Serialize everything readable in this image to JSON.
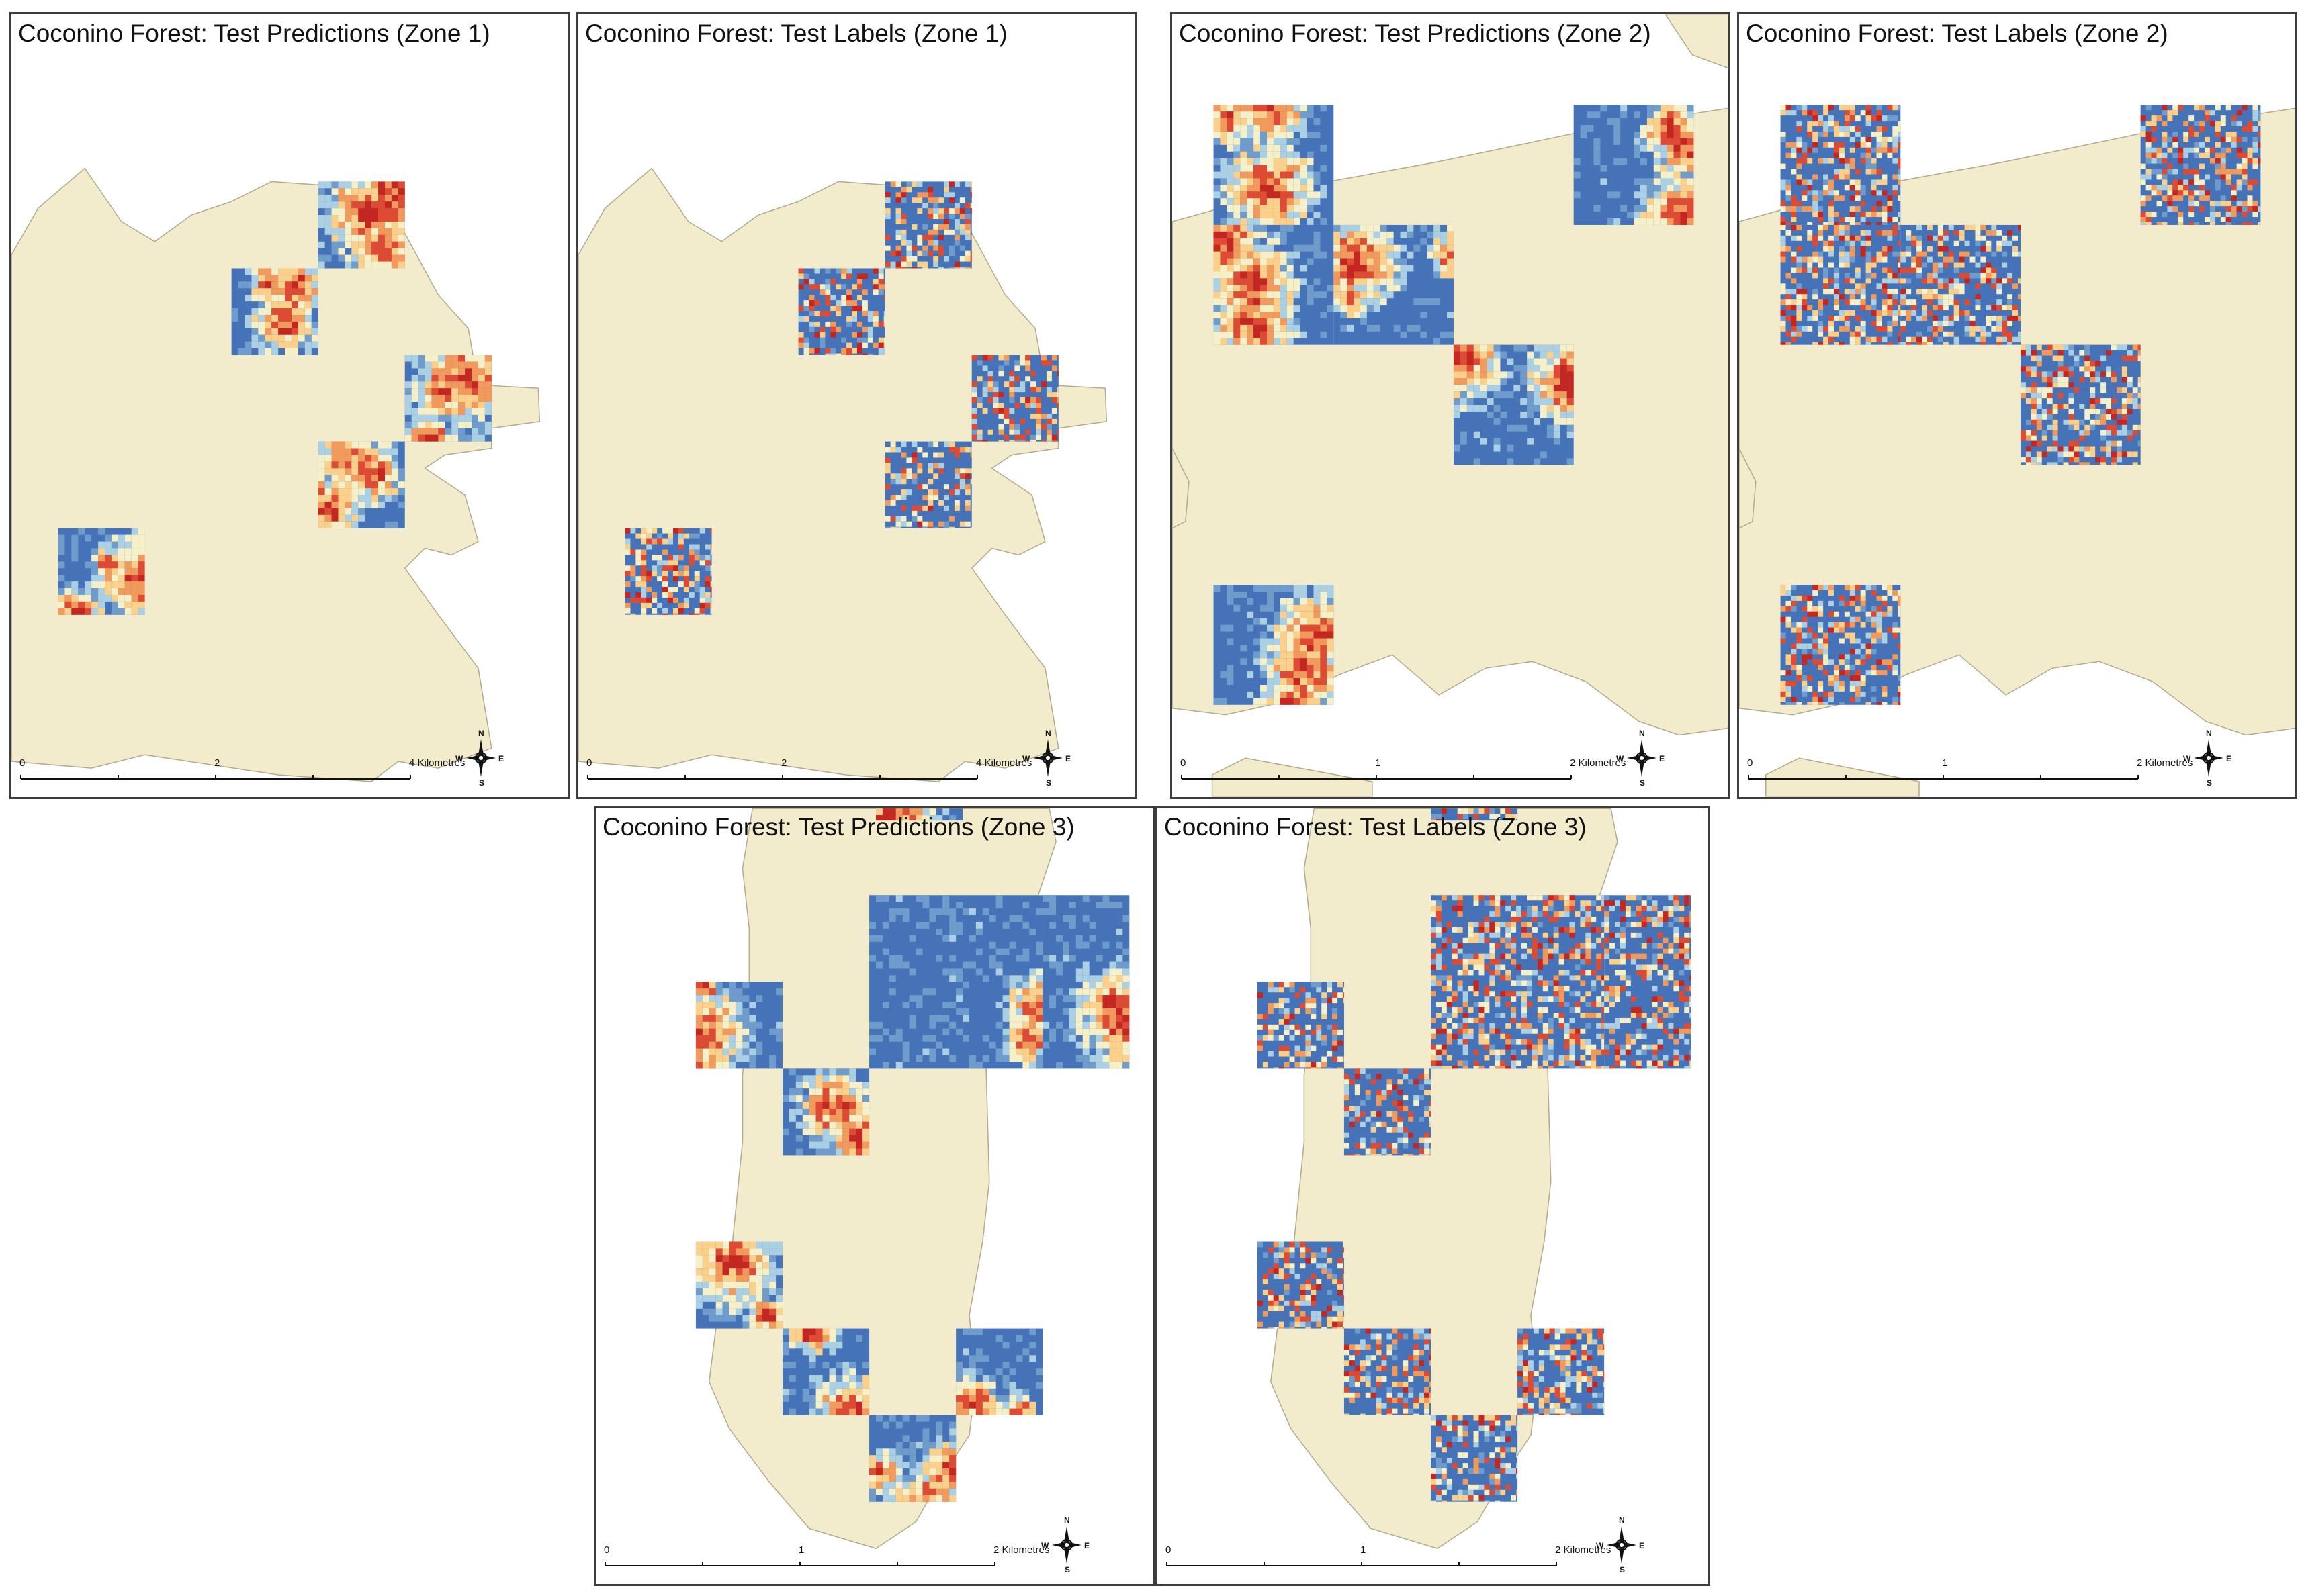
{
  "figure": {
    "colors": {
      "land": "#f2ebcc",
      "land_edge": "#b0aa8e",
      "water_blue": "#4673b8",
      "palette": [
        "#4673b8",
        "#6f9ccb",
        "#abd0e3",
        "#f5f0c8",
        "#fbd08a",
        "#f29a5c",
        "#de4b32",
        "#c5261f"
      ]
    },
    "panels": [
      {
        "id": "zone1-pred",
        "title": "Coconino Forest: Test Predictions (Zone 1)",
        "kind": "prediction",
        "scale": {
          "ticks": [
            "0",
            "2",
            "4 Kilometres"
          ]
        },
        "compass": {
          "n": "N",
          "s": "S",
          "e": "E",
          "w": "W"
        }
      },
      {
        "id": "zone1-labels",
        "title": "Coconino Forest: Test Labels (Zone 1)",
        "kind": "label",
        "scale": {
          "ticks": [
            "0",
            "2",
            "4 Kilometres"
          ]
        },
        "compass": {
          "n": "N",
          "s": "S",
          "e": "E",
          "w": "W"
        }
      },
      {
        "id": "zone2-pred",
        "title": "Coconino Forest: Test Predictions (Zone 2)",
        "kind": "prediction",
        "scale": {
          "ticks": [
            "0",
            "1",
            "2 Kilometres"
          ]
        },
        "compass": {
          "n": "N",
          "s": "S",
          "e": "E",
          "w": "W"
        }
      },
      {
        "id": "zone2-labels",
        "title": "Coconino Forest: Test Labels (Zone 2)",
        "kind": "label",
        "scale": {
          "ticks": [
            "0",
            "1",
            "2 Kilometres"
          ]
        },
        "compass": {
          "n": "N",
          "s": "S",
          "e": "E",
          "w": "W"
        }
      },
      {
        "id": "zone3-pred",
        "title": "Coconino Forest: Test Predictions (Zone 3)",
        "kind": "prediction",
        "scale": {
          "ticks": [
            "0",
            "1",
            "2 Kilometres"
          ]
        },
        "compass": {
          "n": "N",
          "s": "S",
          "e": "E",
          "w": "W"
        }
      },
      {
        "id": "zone3-labels",
        "title": "Coconino Forest: Test Labels (Zone 3)",
        "kind": "label",
        "scale": {
          "ticks": [
            "0",
            "1",
            "2 Kilometres"
          ]
        },
        "compass": {
          "n": "N",
          "s": "S",
          "e": "E",
          "w": "W"
        }
      }
    ]
  }
}
